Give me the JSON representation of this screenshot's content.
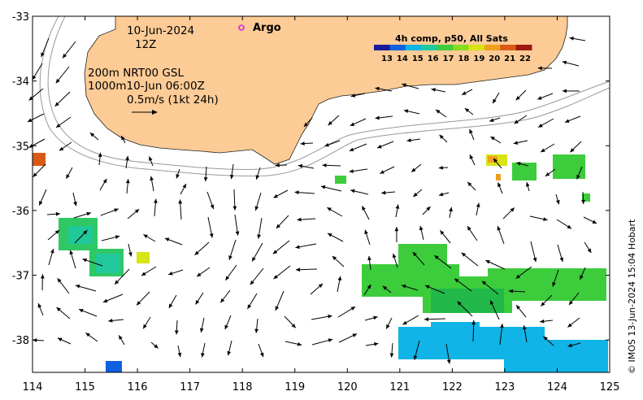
{
  "map": {
    "date": "10-Jun-2024",
    "time": "12Z",
    "line1": "200m   NRT00 GSL",
    "line2": "1000m10-Jun 06:00Z",
    "scale_label": "0.5m/s (1kt 24h)",
    "argo_label": "Argo",
    "credit": "© IMOS 13-Jun-2024 15:04 Hobart",
    "land_color": "#fccb96",
    "lon_ticks": [
      "114",
      "115",
      "116",
      "117",
      "118",
      "119",
      "120",
      "121",
      "122",
      "123",
      "124",
      "125"
    ],
    "lat_ticks": [
      "-33",
      "-34",
      "-35",
      "-36",
      "-37",
      "-38"
    ],
    "lon_range": [
      114,
      125
    ],
    "lat_range": [
      -38.5,
      -33
    ]
  },
  "legend": {
    "title": "4h comp, p50, All Sats",
    "ticks": [
      "13",
      "14",
      "15",
      "16",
      "17",
      "18",
      "19",
      "20",
      "21",
      "22"
    ],
    "colors": [
      "#1a1a9c",
      "#1060e0",
      "#10b4e6",
      "#20c8a0",
      "#3ccc3c",
      "#88dc1e",
      "#d8e414",
      "#f0a01e",
      "#d85a14",
      "#9c1a10"
    ]
  }
}
